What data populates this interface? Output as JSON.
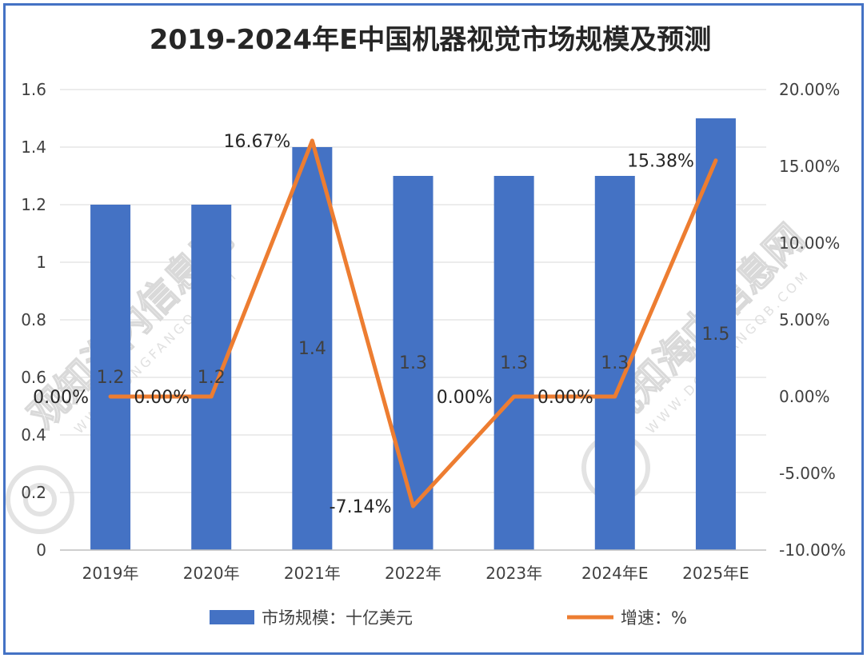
{
  "chart_data": {
    "type": "bar",
    "title": "2019-2024年E中国机器视觉市场规模及预测",
    "categories": [
      "2019年",
      "2020年",
      "2021年",
      "2022年",
      "2023年",
      "2024年E",
      "2025年E"
    ],
    "series": [
      {
        "name": "市场规模：十亿美元",
        "type": "bar",
        "axis": "left",
        "color": "#4472c4",
        "values": [
          1.2,
          1.2,
          1.4,
          1.3,
          1.3,
          1.3,
          1.5
        ],
        "labels": [
          "1.2",
          "1.2",
          "1.4",
          "1.3",
          "1.3",
          "1.3",
          "1.5"
        ]
      },
      {
        "name": "增速：%",
        "type": "line",
        "axis": "right",
        "color": "#ed7d31",
        "values": [
          0.0,
          0.0,
          16.67,
          -7.14,
          0.0,
          0.0,
          15.38
        ],
        "labels": [
          "0.00%",
          "0.00%",
          "16.67%",
          "-7.14%",
          "0.00%",
          "0.00%",
          "15.38%"
        ]
      }
    ],
    "y_left": {
      "min": 0,
      "max": 1.6,
      "step": 0.2,
      "ticks": [
        "0",
        "0.2",
        "0.4",
        "0.6",
        "0.8",
        "1",
        "1.2",
        "1.4",
        "1.6"
      ]
    },
    "y_right": {
      "min": -10,
      "max": 20,
      "step": 5,
      "ticks": [
        "-10.00%",
        "-5.00%",
        "0.00%",
        "5.00%",
        "10.00%",
        "15.00%",
        "20.00%"
      ]
    },
    "grid": true,
    "legend": "bottom"
  },
  "watermark": {
    "text": "观知海内信息网",
    "sub": "WWW.DONGFANGQB.COM"
  }
}
